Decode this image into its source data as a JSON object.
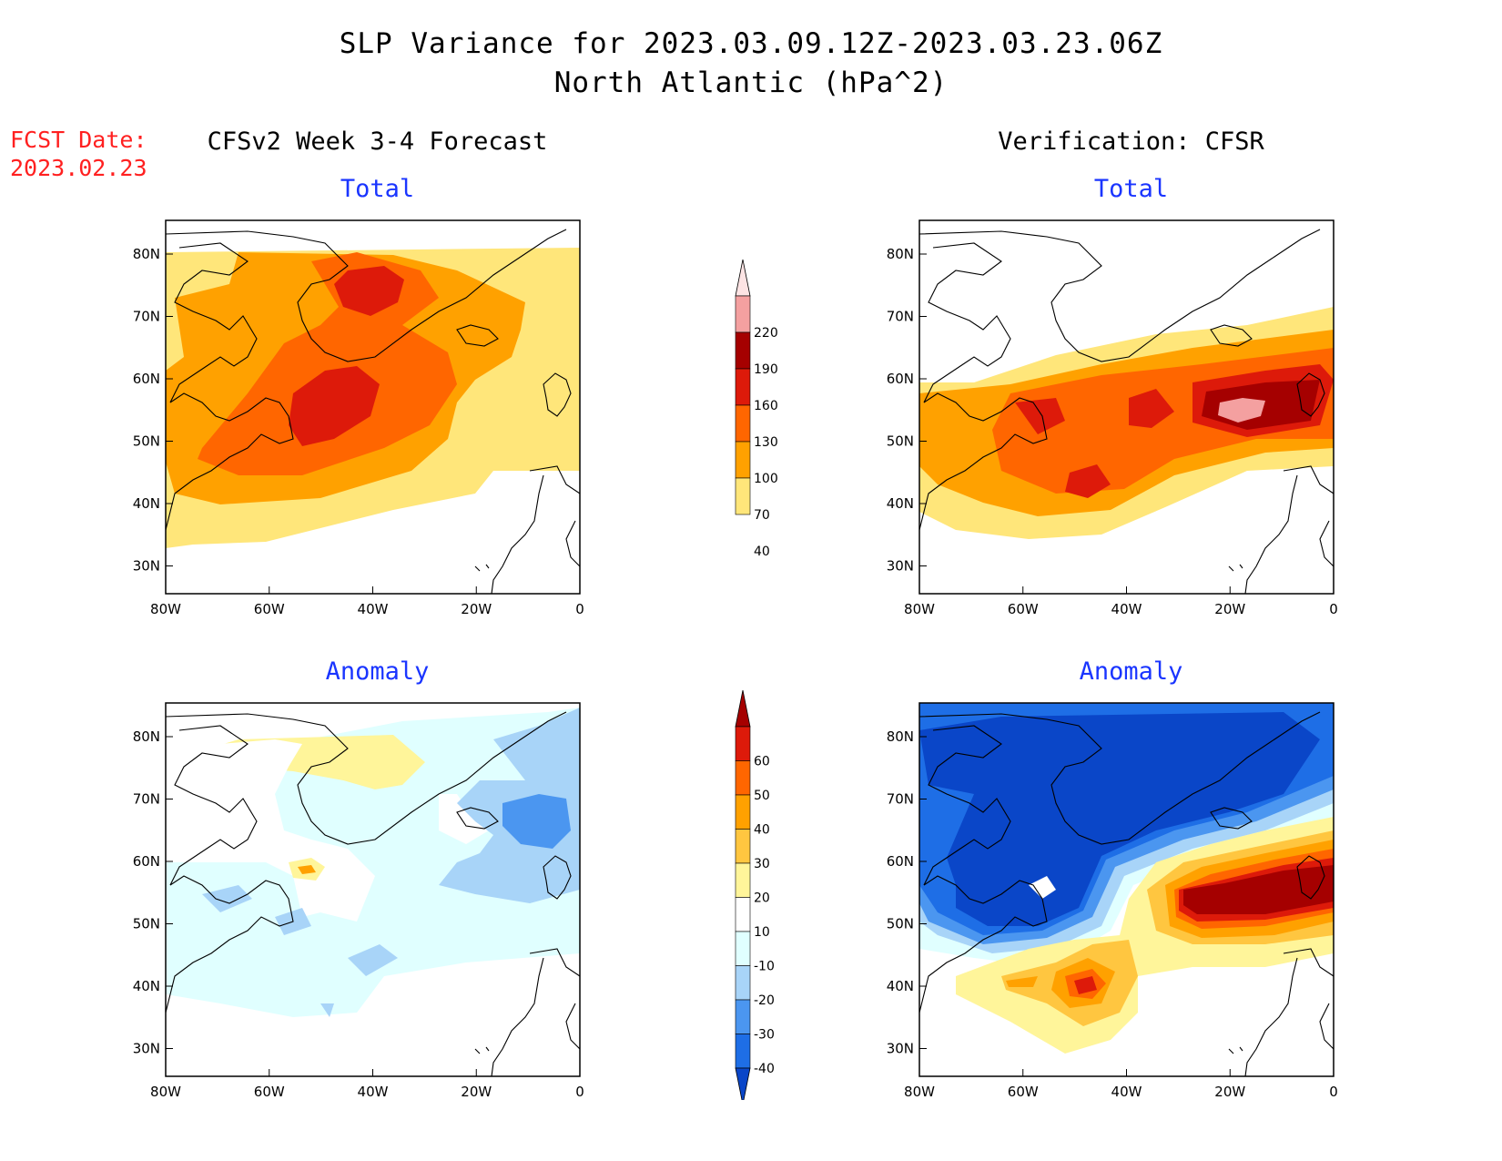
{
  "header": {
    "title_line1": "SLP Variance for 2023.03.09.12Z-2023.03.23.06Z",
    "title_line2": "North Atlantic (hPa^2)",
    "fcst_label": "FCST Date:",
    "fcst_date": "2023.02.23"
  },
  "columns": {
    "left": "CFSv2 Week 3-4 Forecast",
    "right": "Verification: CFSR"
  },
  "panels": [
    {
      "id": "fcst-total",
      "subtitle": "Total"
    },
    {
      "id": "verif-total",
      "subtitle": "Total"
    },
    {
      "id": "fcst-anom",
      "subtitle": "Anomaly"
    },
    {
      "id": "verif-anom",
      "subtitle": "Anomaly"
    }
  ],
  "axes": {
    "lon_ticks": [
      "80W",
      "60W",
      "40W",
      "20W",
      "0"
    ],
    "lat_ticks": [
      "80N",
      "70N",
      "60N",
      "50N",
      "40N",
      "30N"
    ]
  },
  "colorbars": {
    "total": {
      "levels": [
        "220",
        "190",
        "160",
        "130",
        "100",
        "70",
        "40"
      ],
      "colors": [
        "#fde4e4",
        "#f4a0a0",
        "#a50000",
        "#dd1a0a",
        "#ff6600",
        "#ffa100",
        "#ffe67a"
      ]
    },
    "anomaly": {
      "levels": [
        "60",
        "50",
        "40",
        "30",
        "20",
        "10",
        "-10",
        "-20",
        "-30",
        "-40"
      ],
      "colors": [
        "#a50000",
        "#dd1a0a",
        "#ff6600",
        "#ffa100",
        "#ffc640",
        "#fff59a",
        "#ffffff",
        "#e0ffff",
        "#a8d4f8",
        "#4b96f0",
        "#1e6ee6",
        "#0a46c8"
      ]
    }
  },
  "colors": {
    "total_40": "#ffe67a",
    "total_70": "#ffa100",
    "total_100": "#ff6600",
    "total_130": "#dd1a0a",
    "total_160": "#a50000",
    "total_190": "#f4a0a0",
    "anom_neg10": "#e0ffff",
    "anom_neg20": "#a8d4f8",
    "anom_neg30": "#4b96f0",
    "anom_neg40": "#1e6ee6",
    "anom_neg50": "#0a46c8",
    "anom_10": "#fff59a",
    "anom_20": "#ffc640",
    "anom_30": "#ffa100",
    "anom_40": "#ff6600",
    "anom_50": "#dd1a0a",
    "anom_60": "#a50000",
    "title_red": "#ff2020",
    "subtitle_blue": "#1a35ff"
  }
}
